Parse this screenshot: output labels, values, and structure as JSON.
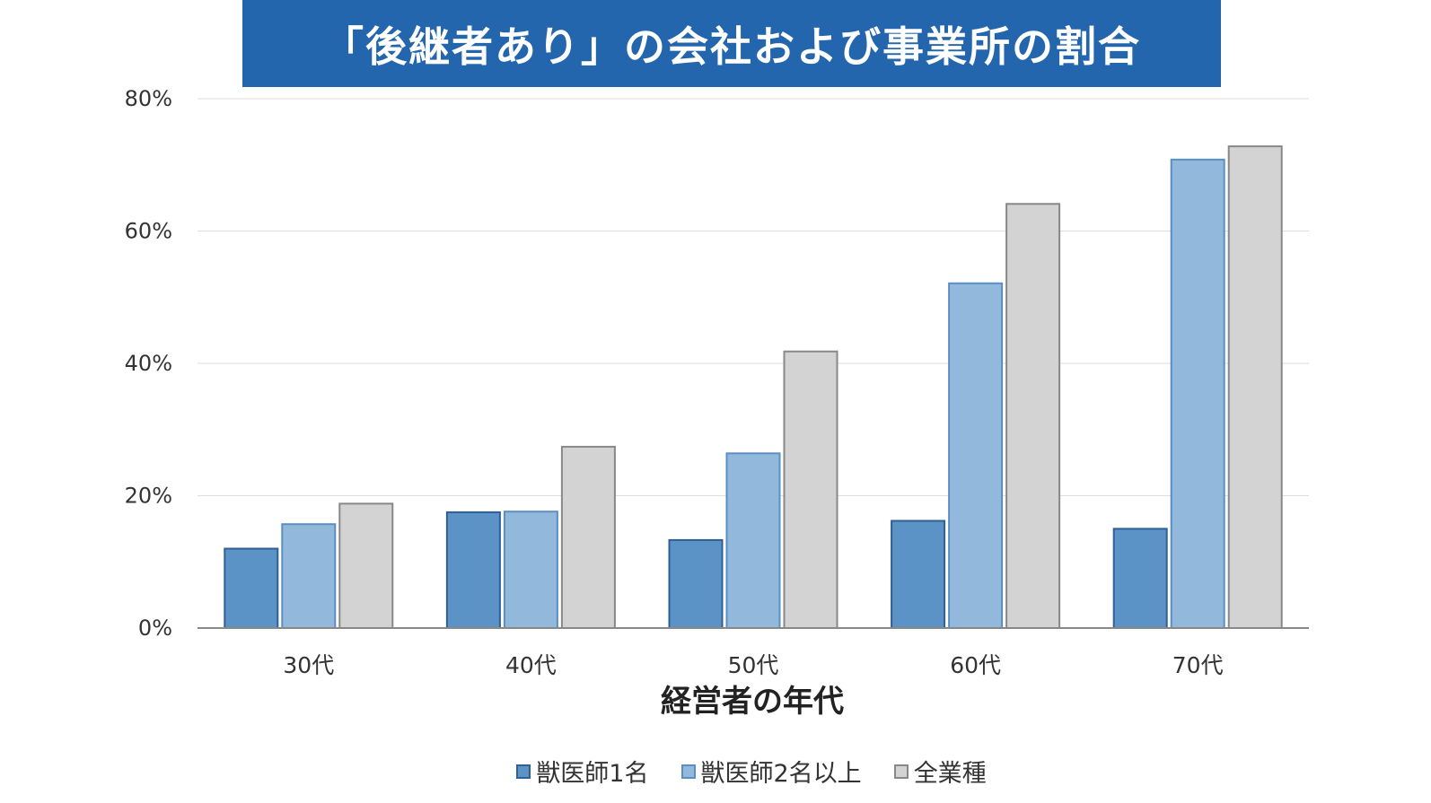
{
  "chart_data": {
    "type": "bar",
    "title": "「後継者あり」の会社および事業所の割合",
    "xlabel": "経営者の年代",
    "ylabel": "",
    "categories": [
      "30代",
      "40代",
      "50代",
      "60代",
      "70代"
    ],
    "ylim": [
      0,
      80
    ],
    "yticks": [
      "0%",
      "20%",
      "40%",
      "60%",
      "80%"
    ],
    "ytick_values": [
      0,
      20,
      40,
      60,
      80
    ],
    "grid": true,
    "legend_position": "bottom",
    "series": [
      {
        "name": "獣医師1名",
        "color": "#5b93c7",
        "border": "#2f5f93",
        "values": [
          12,
          17.5,
          13.3,
          16.2,
          15
        ]
      },
      {
        "name": "獣医師2名以上",
        "color": "#92b8dc",
        "border": "#5b8ec2",
        "values": [
          15.7,
          17.6,
          26.4,
          52.1,
          70.8
        ]
      },
      {
        "name": "全業種",
        "color": "#d3d3d3",
        "border": "#888888",
        "values": [
          18.8,
          27.4,
          41.8,
          64.1,
          72.8
        ]
      }
    ]
  }
}
